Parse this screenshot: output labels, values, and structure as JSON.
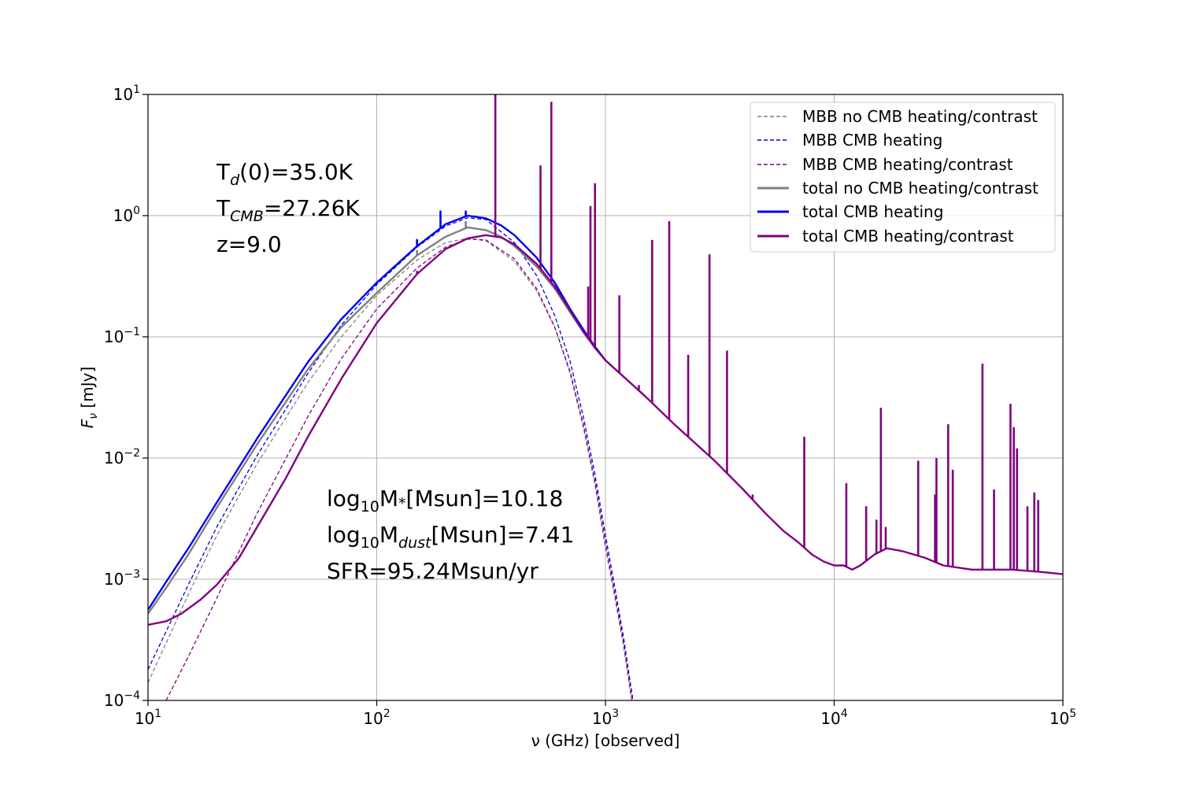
{
  "chart_data": {
    "type": "line",
    "title": "",
    "xlabel": "ν (GHz) [observed]",
    "ylabel": "Fν [mJy]",
    "xscale": "log",
    "yscale": "log",
    "xlim": [
      10,
      100000
    ],
    "ylim": [
      0.0001,
      10
    ],
    "grid": true,
    "legend_position": "top-right",
    "x_ticks": [
      {
        "base": "10",
        "exp": "1"
      },
      {
        "base": "10",
        "exp": "2"
      },
      {
        "base": "10",
        "exp": "3"
      },
      {
        "base": "10",
        "exp": "4"
      },
      {
        "base": "10",
        "exp": "5"
      }
    ],
    "y_ticks": [
      {
        "base": "10",
        "exp": "−4"
      },
      {
        "base": "10",
        "exp": "−3"
      },
      {
        "base": "10",
        "exp": "−2"
      },
      {
        "base": "10",
        "exp": "−1"
      },
      {
        "base": "10",
        "exp": "0"
      },
      {
        "base": "10",
        "exp": "1"
      }
    ],
    "annotations": {
      "td": {
        "a": "T",
        "b": "d",
        "c": "(0)=35.0K"
      },
      "tcmb": {
        "a": "T",
        "b": "CMB",
        "c": "=27.26K"
      },
      "z": "z=9.0",
      "mstar": {
        "a": "log",
        "b": "10",
        "c": "M",
        "d": "*",
        "e": "[Msun]=10.18"
      },
      "mdust": {
        "a": "log",
        "b": "10",
        "c": "M",
        "d": "dust",
        "e": "[Msun]=7.41"
      },
      "sfr": "SFR=95.24Msun/yr"
    },
    "series": [
      {
        "name": "MBB no CMB heating/contrast",
        "color": "#808080",
        "style": "dashed",
        "points": [
          [
            10,
            0.00014
          ],
          [
            15,
            0.00075
          ],
          [
            20,
            0.0023
          ],
          [
            30,
            0.009
          ],
          [
            50,
            0.042
          ],
          [
            70,
            0.1
          ],
          [
            100,
            0.22
          ],
          [
            150,
            0.43
          ],
          [
            200,
            0.6
          ],
          [
            250,
            0.65
          ],
          [
            300,
            0.62
          ],
          [
            400,
            0.42
          ],
          [
            500,
            0.24
          ],
          [
            600,
            0.12
          ],
          [
            700,
            0.05
          ],
          [
            800,
            0.018
          ],
          [
            900,
            0.006
          ],
          [
            1000,
            0.0018
          ],
          [
            1100,
            0.0007
          ],
          [
            1200,
            0.00028
          ],
          [
            1300,
            0.0001
          ]
        ]
      },
      {
        "name": "MBB CMB heating",
        "color": "#0000dd",
        "style": "dashed",
        "points": [
          [
            10,
            0.00018
          ],
          [
            15,
            0.0009
          ],
          [
            20,
            0.0027
          ],
          [
            30,
            0.0105
          ],
          [
            50,
            0.05
          ],
          [
            70,
            0.125
          ],
          [
            100,
            0.27
          ],
          [
            150,
            0.55
          ],
          [
            200,
            0.82
          ],
          [
            250,
            0.96
          ],
          [
            300,
            0.93
          ],
          [
            400,
            0.6
          ],
          [
            500,
            0.32
          ],
          [
            600,
            0.15
          ],
          [
            700,
            0.063
          ],
          [
            800,
            0.022
          ],
          [
            900,
            0.0073
          ],
          [
            1000,
            0.0023
          ],
          [
            1100,
            0.00085
          ],
          [
            1200,
            0.00033
          ],
          [
            1300,
            0.00012
          ],
          [
            1320,
            0.0001
          ]
        ]
      },
      {
        "name": "MBB CMB heating/contrast",
        "color": "#800080",
        "style": "dashed",
        "points": [
          [
            12,
            0.0001
          ],
          [
            15,
            0.00023
          ],
          [
            20,
            0.0007
          ],
          [
            30,
            0.0035
          ],
          [
            50,
            0.022
          ],
          [
            70,
            0.066
          ],
          [
            100,
            0.17
          ],
          [
            150,
            0.37
          ],
          [
            200,
            0.55
          ],
          [
            250,
            0.64
          ],
          [
            300,
            0.63
          ],
          [
            400,
            0.44
          ],
          [
            500,
            0.25
          ],
          [
            600,
            0.12
          ],
          [
            700,
            0.052
          ],
          [
            800,
            0.019
          ],
          [
            900,
            0.0064
          ],
          [
            1000,
            0.002
          ],
          [
            1100,
            0.00075
          ],
          [
            1200,
            0.0003
          ],
          [
            1300,
            0.00011
          ],
          [
            1320,
            0.0001
          ]
        ]
      },
      {
        "name": "total no CMB heating/contrast",
        "color": "#808080",
        "style": "solid",
        "points": [
          [
            10,
            0.00052
          ],
          [
            12,
            0.00085
          ],
          [
            15,
            0.0016
          ],
          [
            20,
            0.0039
          ],
          [
            30,
            0.013
          ],
          [
            50,
            0.054
          ],
          [
            70,
            0.12
          ],
          [
            100,
            0.23
          ],
          [
            150,
            0.47
          ],
          [
            200,
            0.67
          ],
          [
            250,
            0.8
          ],
          [
            300,
            0.76
          ],
          [
            350,
            0.67
          ],
          [
            400,
            0.56
          ],
          [
            500,
            0.38
          ],
          [
            600,
            0.25
          ],
          [
            700,
            0.16
          ],
          [
            800,
            0.11
          ],
          [
            900,
            0.082
          ],
          [
            1000,
            0.064
          ]
        ]
      },
      {
        "name": "total CMB heating",
        "color": "#0000ee",
        "style": "solid",
        "points": [
          [
            10,
            0.00056
          ],
          [
            12,
            0.00095
          ],
          [
            15,
            0.0018
          ],
          [
            20,
            0.0043
          ],
          [
            30,
            0.0145
          ],
          [
            50,
            0.062
          ],
          [
            70,
            0.14
          ],
          [
            100,
            0.28
          ],
          [
            150,
            0.56
          ],
          [
            200,
            0.85
          ],
          [
            250,
            1.0
          ],
          [
            300,
            0.95
          ],
          [
            350,
            0.83
          ],
          [
            400,
            0.69
          ],
          [
            500,
            0.45
          ],
          [
            600,
            0.28
          ],
          [
            700,
            0.17
          ],
          [
            800,
            0.115
          ],
          [
            900,
            0.083
          ],
          [
            1000,
            0.064
          ]
        ]
      },
      {
        "name": "total CMB heating/contrast",
        "color": "#800080",
        "style": "solid",
        "points": [
          [
            10,
            0.00042
          ],
          [
            12,
            0.00045
          ],
          [
            14,
            0.00052
          ],
          [
            17,
            0.00068
          ],
          [
            20,
            0.0009
          ],
          [
            25,
            0.0015
          ],
          [
            30,
            0.0027
          ],
          [
            40,
            0.0068
          ],
          [
            50,
            0.015
          ],
          [
            70,
            0.045
          ],
          [
            100,
            0.13
          ],
          [
            150,
            0.33
          ],
          [
            200,
            0.53
          ],
          [
            250,
            0.65
          ],
          [
            300,
            0.69
          ],
          [
            350,
            0.66
          ],
          [
            400,
            0.58
          ],
          [
            500,
            0.4
          ],
          [
            600,
            0.26
          ],
          [
            700,
            0.165
          ],
          [
            800,
            0.11
          ],
          [
            900,
            0.081
          ],
          [
            1000,
            0.064
          ],
          [
            1500,
            0.032
          ],
          [
            2000,
            0.019
          ],
          [
            3000,
            0.0095
          ],
          [
            4000,
            0.0055
          ],
          [
            5000,
            0.0035
          ],
          [
            6000,
            0.0025
          ],
          [
            7000,
            0.002
          ],
          [
            8000,
            0.0016
          ],
          [
            9000,
            0.0014
          ],
          [
            10000,
            0.0013
          ],
          [
            11000,
            0.0013
          ],
          [
            12000,
            0.0012
          ],
          [
            13000,
            0.0013
          ],
          [
            15000,
            0.0016
          ],
          [
            17000,
            0.0018
          ],
          [
            20000,
            0.0017
          ],
          [
            25000,
            0.0015
          ],
          [
            30000,
            0.0013
          ],
          [
            40000,
            0.0012
          ],
          [
            60000,
            0.0012
          ],
          [
            80000,
            0.00115
          ],
          [
            100000,
            0.0011
          ]
        ]
      }
    ],
    "emission_lines": [
      {
        "x": 150,
        "peak": 0.64,
        "series": "total CMB heating"
      },
      {
        "x": 150,
        "peak": 0.52,
        "series": "total no CMB heating/contrast"
      },
      {
        "x": 150,
        "peak": 0.35,
        "series": "total CMB heating/contrast"
      },
      {
        "x": 190,
        "peak": 1.1,
        "series": "total CMB heating"
      },
      {
        "x": 245,
        "peak": 1.1,
        "series": "total CMB heating"
      },
      {
        "x": 245,
        "peak": 0.9,
        "series": "total no CMB heating/contrast"
      },
      {
        "x": 330,
        "peak": 10,
        "series": "total CMB heating/contrast"
      },
      {
        "x": 520,
        "peak": 2.6,
        "series": "total CMB heating/contrast"
      },
      {
        "x": 580,
        "peak": 8.7,
        "series": "total CMB heating/contrast"
      },
      {
        "x": 840,
        "peak": 0.26,
        "series": "total CMB heating/contrast"
      },
      {
        "x": 860,
        "peak": 1.2,
        "series": "total CMB heating/contrast"
      },
      {
        "x": 900,
        "peak": 1.85,
        "series": "total CMB heating/contrast"
      },
      {
        "x": 1150,
        "peak": 0.22,
        "series": "total CMB heating/contrast"
      },
      {
        "x": 1400,
        "peak": 0.04,
        "series": "total CMB heating/contrast"
      },
      {
        "x": 1600,
        "peak": 0.63,
        "series": "total CMB heating/contrast"
      },
      {
        "x": 1900,
        "peak": 0.9,
        "series": "total CMB heating/contrast"
      },
      {
        "x": 2300,
        "peak": 0.071,
        "series": "total CMB heating/contrast"
      },
      {
        "x": 2850,
        "peak": 0.48,
        "series": "total CMB heating/contrast"
      },
      {
        "x": 3400,
        "peak": 0.077,
        "series": "total CMB heating/contrast"
      },
      {
        "x": 4400,
        "peak": 0.005,
        "series": "total CMB heating/contrast"
      },
      {
        "x": 7400,
        "peak": 0.015,
        "series": "total CMB heating/contrast"
      },
      {
        "x": 11300,
        "peak": 0.0062,
        "series": "total CMB heating/contrast"
      },
      {
        "x": 13800,
        "peak": 0.004,
        "series": "total CMB heating/contrast"
      },
      {
        "x": 15300,
        "peak": 0.0031,
        "series": "total CMB heating/contrast"
      },
      {
        "x": 16000,
        "peak": 0.026,
        "series": "total CMB heating/contrast"
      },
      {
        "x": 16800,
        "peak": 0.0027,
        "series": "total CMB heating/contrast"
      },
      {
        "x": 23300,
        "peak": 0.0095,
        "series": "total CMB heating/contrast"
      },
      {
        "x": 27600,
        "peak": 0.005,
        "series": "total CMB heating/contrast"
      },
      {
        "x": 28000,
        "peak": 0.01,
        "series": "total CMB heating/contrast"
      },
      {
        "x": 31500,
        "peak": 0.019,
        "series": "total CMB heating/contrast"
      },
      {
        "x": 33000,
        "peak": 0.008,
        "series": "total CMB heating/contrast"
      },
      {
        "x": 44500,
        "peak": 0.06,
        "series": "total CMB heating/contrast"
      },
      {
        "x": 50000,
        "peak": 0.0055,
        "series": "total CMB heating/contrast"
      },
      {
        "x": 59000,
        "peak": 0.028,
        "series": "total CMB heating/contrast"
      },
      {
        "x": 61000,
        "peak": 0.018,
        "series": "total CMB heating/contrast"
      },
      {
        "x": 63000,
        "peak": 0.012,
        "series": "total CMB heating/contrast"
      },
      {
        "x": 70000,
        "peak": 0.004,
        "series": "total CMB heating/contrast"
      },
      {
        "x": 75000,
        "peak": 0.0052,
        "series": "total CMB heating/contrast"
      },
      {
        "x": 78000,
        "peak": 0.0045,
        "series": "total CMB heating/contrast"
      }
    ]
  }
}
